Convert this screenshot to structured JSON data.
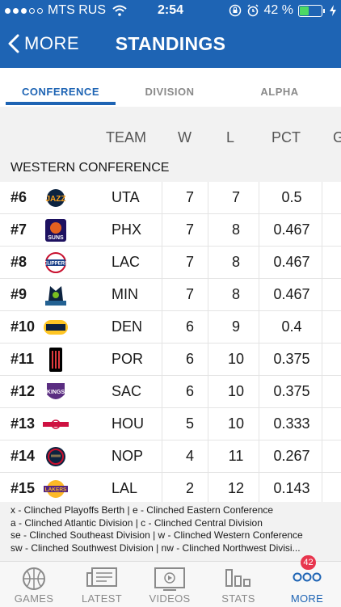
{
  "status_bar": {
    "carrier": "MTS RUS",
    "time": "2:54",
    "battery": "42 %",
    "battery_level": 0.42
  },
  "header": {
    "back_label": "MORE",
    "title": "STANDINGS",
    "color": "#1e64b4"
  },
  "tabs": [
    {
      "label": "CONFERENCE",
      "active": true
    },
    {
      "label": "DIVISION",
      "active": false
    },
    {
      "label": "ALPHA",
      "active": false
    }
  ],
  "table": {
    "columns": {
      "team": "TEAM",
      "w": "W",
      "l": "L",
      "pct": "PCT",
      "gb": "G"
    },
    "conference": "WESTERN CONFERENCE",
    "rows": [
      {
        "rank": "#6",
        "team": "UTA",
        "w": "7",
        "l": "7",
        "pct": "0.5",
        "logo": "jazz-logo-icon"
      },
      {
        "rank": "#7",
        "team": "PHX",
        "w": "7",
        "l": "8",
        "pct": "0.467",
        "logo": "suns-logo-icon"
      },
      {
        "rank": "#8",
        "team": "LAC",
        "w": "7",
        "l": "8",
        "pct": "0.467",
        "logo": "clippers-logo-icon"
      },
      {
        "rank": "#9",
        "team": "MIN",
        "w": "7",
        "l": "8",
        "pct": "0.467",
        "logo": "timberwolves-logo-icon"
      },
      {
        "rank": "#10",
        "team": "DEN",
        "w": "6",
        "l": "9",
        "pct": "0.4",
        "logo": "nuggets-logo-icon"
      },
      {
        "rank": "#11",
        "team": "POR",
        "w": "6",
        "l": "10",
        "pct": "0.375",
        "logo": "trail-blazers-logo-icon"
      },
      {
        "rank": "#12",
        "team": "SAC",
        "w": "6",
        "l": "10",
        "pct": "0.375",
        "logo": "kings-logo-icon"
      },
      {
        "rank": "#13",
        "team": "HOU",
        "w": "5",
        "l": "10",
        "pct": "0.333",
        "logo": "rockets-logo-icon"
      },
      {
        "rank": "#14",
        "team": "NOP",
        "w": "4",
        "l": "11",
        "pct": "0.267",
        "logo": "pelicans-logo-icon"
      },
      {
        "rank": "#15",
        "team": "LAL",
        "w": "2",
        "l": "12",
        "pct": "0.143",
        "logo": "lakers-logo-icon"
      }
    ]
  },
  "legend": [
    "x - Clinched Playoffs Berth | e - Clinched Eastern Conference",
    "a - Clinched Atlantic Division | c - Clinched Central Division",
    "se - Clinched Southeast Division | w - Clinched Western Conference",
    "sw - Clinched Southwest Division | nw - Clinched Northwest Divisi..."
  ],
  "bottom_nav": [
    {
      "label": "GAMES",
      "icon": "basketball-icon"
    },
    {
      "label": "LATEST",
      "icon": "news-icon"
    },
    {
      "label": "VIDEOS",
      "icon": "video-play-icon"
    },
    {
      "label": "STATS",
      "icon": "stats-bars-icon"
    },
    {
      "label": "MORE",
      "icon": "more-dots-icon",
      "badge": "42",
      "active": true
    }
  ]
}
